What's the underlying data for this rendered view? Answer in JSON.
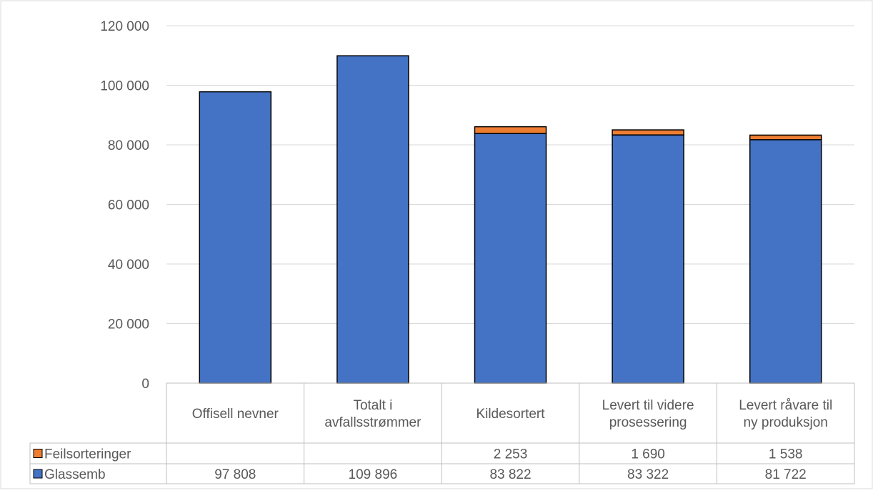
{
  "chart_data": {
    "type": "bar",
    "stacked": true,
    "categories": [
      [
        "Offisell nevner"
      ],
      [
        "Totalt i",
        "avfallsstrømmer"
      ],
      [
        "Kildesortert"
      ],
      [
        "Levert til videre",
        "prosessering"
      ],
      [
        "Levert råvare til",
        "ny produksjon"
      ]
    ],
    "series": [
      {
        "name": "Glassemb",
        "color": "#4472C4",
        "values": [
          97808,
          109896,
          83822,
          83322,
          81722
        ],
        "labels": [
          "97 808",
          "109 896",
          "83 822",
          "83 322",
          "81 722"
        ]
      },
      {
        "name": "Feilsorteringer",
        "color": "#ED7D31",
        "values": [
          null,
          null,
          2253,
          1690,
          1538
        ],
        "labels": [
          "",
          "",
          "2 253",
          "1 690",
          "1 538"
        ]
      }
    ],
    "ylim": [
      0,
      120000
    ],
    "yticks": [
      0,
      20000,
      40000,
      60000,
      80000,
      100000,
      120000
    ],
    "ytick_labels": [
      "0",
      "20 000",
      "40 000",
      "60 000",
      "80 000",
      "100 000",
      "120 000"
    ],
    "grid": true,
    "legend": "data-table",
    "title": "",
    "xlabel": "",
    "ylabel": ""
  }
}
